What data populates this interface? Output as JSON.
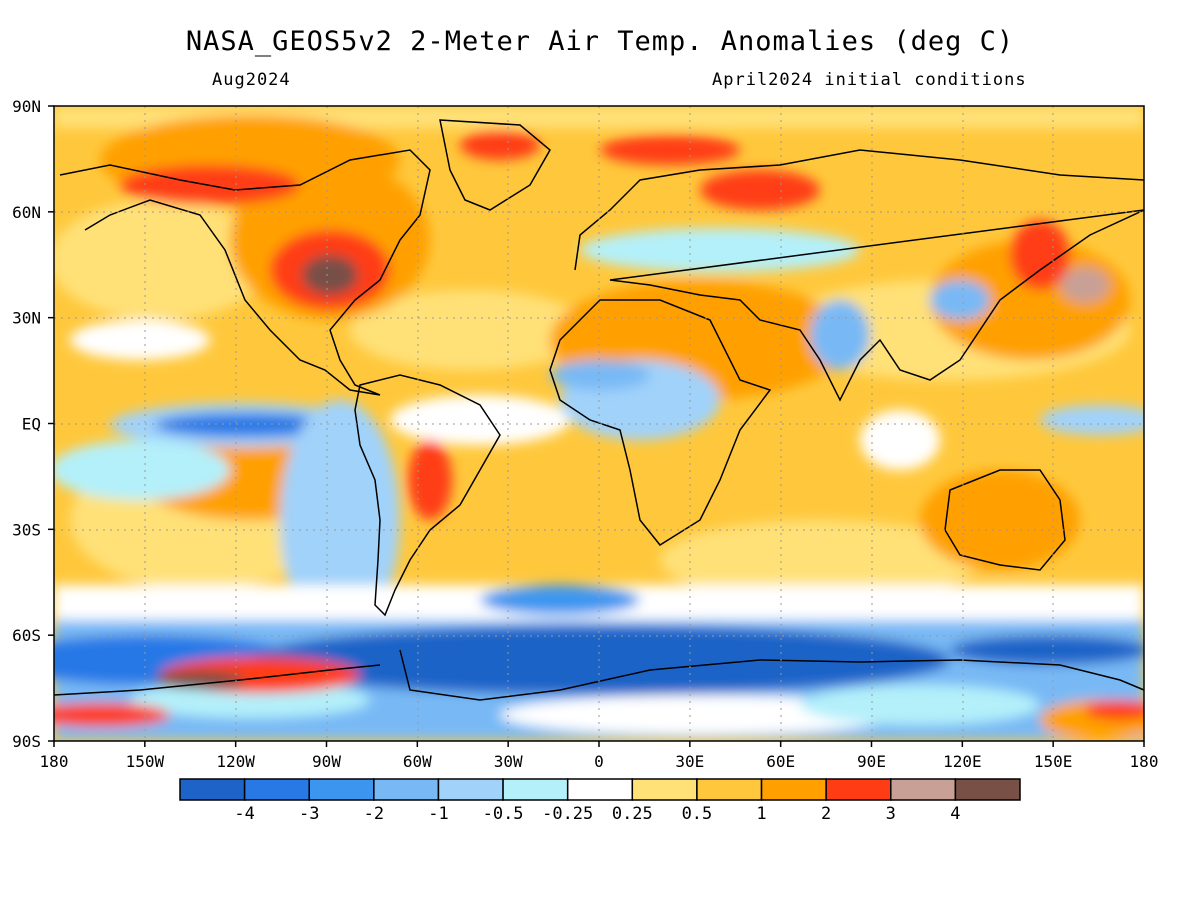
{
  "header": {
    "title": "NASA_GEOS5v2 2-Meter Air Temp. Anomalies (deg C)",
    "month": "Aug2024",
    "init": "April2024 initial conditions"
  },
  "map": {
    "lat_ticks": [
      "90N",
      "60N",
      "30N",
      "EQ",
      "30S",
      "60S",
      "90S"
    ],
    "lon_ticks": [
      "180",
      "150W",
      "120W",
      "90W",
      "60W",
      "30W",
      "0",
      "30E",
      "60E",
      "90E",
      "120E",
      "150E",
      "180"
    ],
    "lon_range": [
      -180,
      180
    ],
    "lat_range": [
      -90,
      90
    ],
    "grid": "dotted"
  },
  "colorbar": {
    "colors": [
      "#1e64c8",
      "#2878e6",
      "#3c96f0",
      "#78b9f5",
      "#a0d2fa",
      "#b4f0fa",
      "#ffffff",
      "#ffe178",
      "#ffc83c",
      "#ffa000",
      "#ff3c14",
      "#c8a096",
      "#785046"
    ],
    "labels": [
      "-4",
      "-3",
      "-2",
      "-1",
      "-0.5",
      "-0.25",
      "0.25",
      "0.5",
      "1",
      "2",
      "3",
      "4"
    ]
  }
}
